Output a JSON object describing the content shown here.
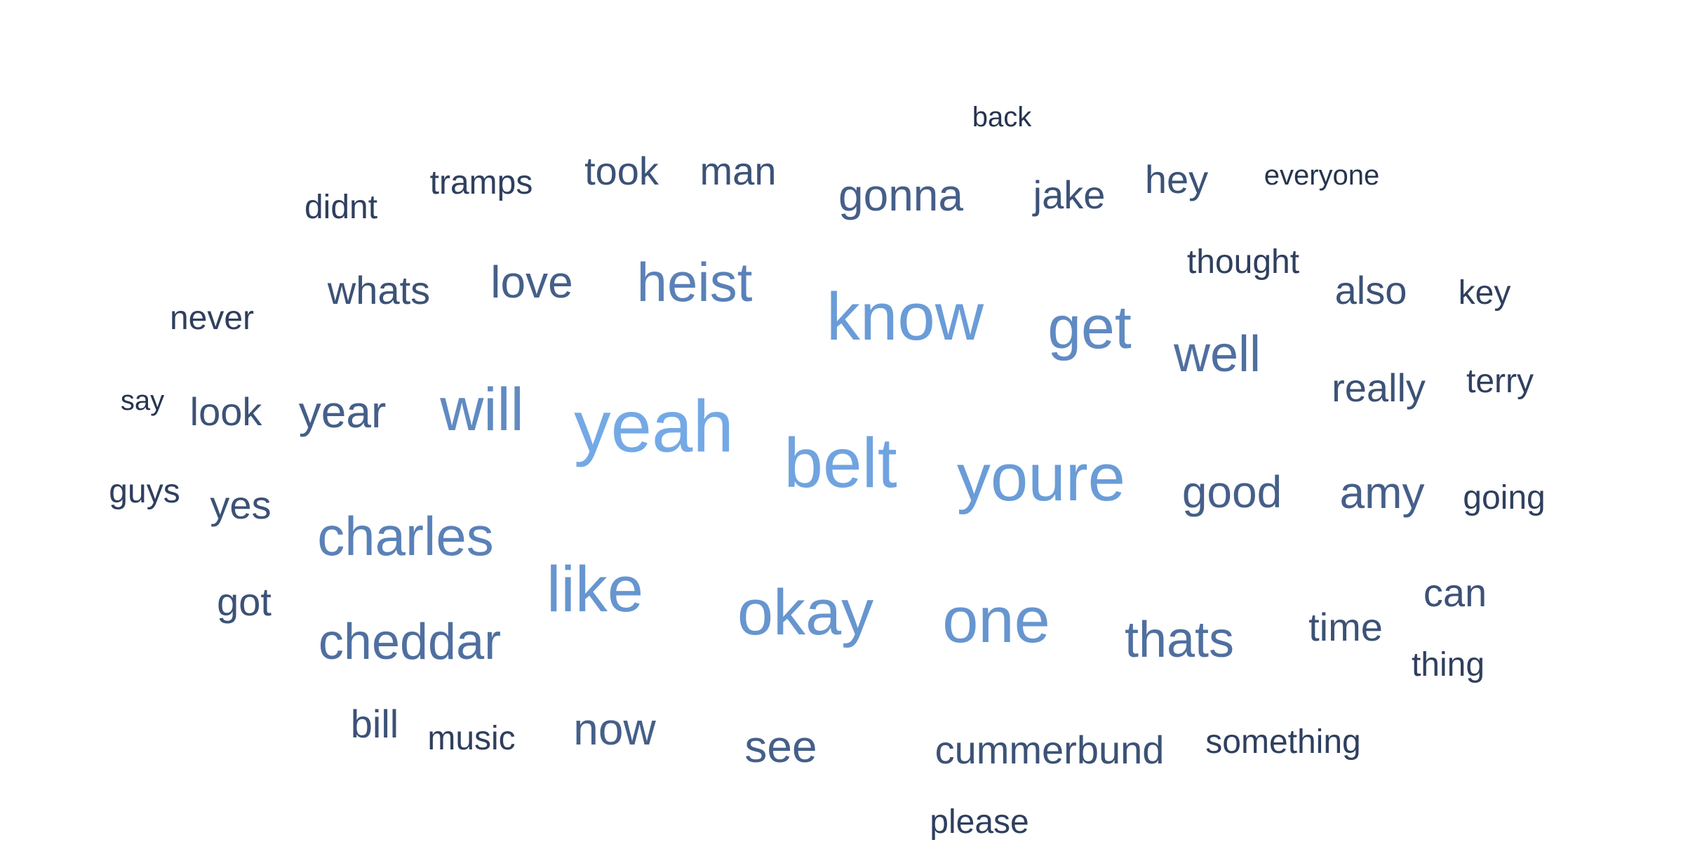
{
  "words": [
    {
      "text": "back",
      "tier": "w-s"
    },
    {
      "text": "tramps",
      "tier": "w-0"
    },
    {
      "text": "took",
      "tier": "w-1"
    },
    {
      "text": "man",
      "tier": "w-1"
    },
    {
      "text": "gonna",
      "tier": "w-2"
    },
    {
      "text": "jake",
      "tier": "w-1"
    },
    {
      "text": "hey",
      "tier": "w-1"
    },
    {
      "text": "everyone",
      "tier": "w-s"
    },
    {
      "text": "didnt",
      "tier": "w-0"
    },
    {
      "text": "thought",
      "tier": "w-0"
    },
    {
      "text": "whats",
      "tier": "w-1"
    },
    {
      "text": "love",
      "tier": "w-2"
    },
    {
      "text": "heist",
      "tier": "w-4"
    },
    {
      "text": "also",
      "tier": "w-1"
    },
    {
      "text": "key",
      "tier": "w-0"
    },
    {
      "text": "never",
      "tier": "w-0"
    },
    {
      "text": "know",
      "tier": "w-7"
    },
    {
      "text": "get",
      "tier": "w-5"
    },
    {
      "text": "well",
      "tier": "w-3"
    },
    {
      "text": "really",
      "tier": "w-1"
    },
    {
      "text": "terry",
      "tier": "w-0"
    },
    {
      "text": "say",
      "tier": "w-s"
    },
    {
      "text": "look",
      "tier": "w-1"
    },
    {
      "text": "year",
      "tier": "w-2"
    },
    {
      "text": "will",
      "tier": "w-5"
    },
    {
      "text": "yeah",
      "tier": "w-9"
    },
    {
      "text": "belt",
      "tier": "w-8"
    },
    {
      "text": "youre",
      "tier": "w-7"
    },
    {
      "text": "good",
      "tier": "w-2"
    },
    {
      "text": "amy",
      "tier": "w-2"
    },
    {
      "text": "going",
      "tier": "w-0"
    },
    {
      "text": "guys",
      "tier": "w-0"
    },
    {
      "text": "yes",
      "tier": "w-1"
    },
    {
      "text": "charles",
      "tier": "w-4"
    },
    {
      "text": "like",
      "tier": "w-6"
    },
    {
      "text": "okay",
      "tier": "w-6"
    },
    {
      "text": "one",
      "tier": "w-6"
    },
    {
      "text": "thats",
      "tier": "w-3"
    },
    {
      "text": "time",
      "tier": "w-1"
    },
    {
      "text": "can",
      "tier": "w-1"
    },
    {
      "text": "got",
      "tier": "w-1"
    },
    {
      "text": "cheddar",
      "tier": "w-3"
    },
    {
      "text": "thing",
      "tier": "w-0"
    },
    {
      "text": "bill",
      "tier": "w-1"
    },
    {
      "text": "music",
      "tier": "w-0"
    },
    {
      "text": "now",
      "tier": "w-2"
    },
    {
      "text": "see",
      "tier": "w-2"
    },
    {
      "text": "cummerbund",
      "tier": "w-1"
    },
    {
      "text": "something",
      "tier": "w-0"
    },
    {
      "text": "please",
      "tier": "w-0"
    }
  ]
}
